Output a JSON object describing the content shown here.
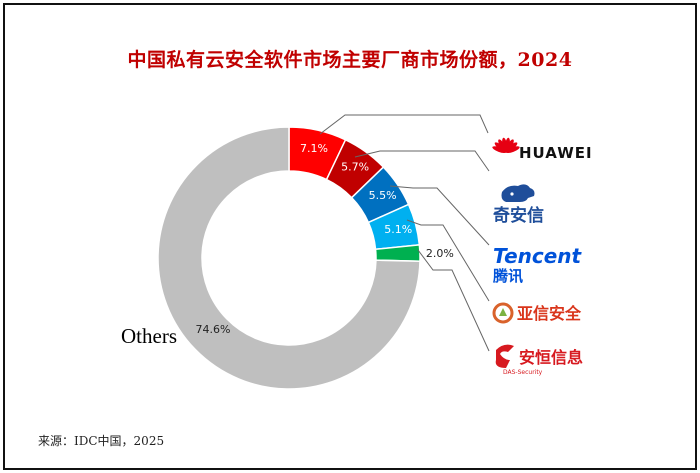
{
  "title": "中国私有云安全软件市场主要厂商市场份额，2024",
  "source": "来源：IDC中国，2025",
  "chart_data": {
    "type": "pie",
    "title": "中国私有云安全软件市场主要厂商市场份额，2024",
    "style": "donut",
    "slices": [
      {
        "name": "HUAWEI",
        "value": 7.1,
        "label": "7.1%",
        "color": "#ff0000",
        "label_pos": "inside",
        "logo_text": "HUAWEI"
      },
      {
        "name": "奇安信",
        "value": 5.7,
        "label": "5.7%",
        "color": "#c00000",
        "label_pos": "inside",
        "logo_text": "奇安信"
      },
      {
        "name": "Tencent 腾讯",
        "value": 5.5,
        "label": "5.5%",
        "color": "#0070c0",
        "label_pos": "inside",
        "logo_text": "Tencent 腾讯"
      },
      {
        "name": "亚信安全",
        "value": 5.1,
        "label": "5.1%",
        "color": "#00b0f0",
        "label_pos": "inside",
        "logo_text": "亚信安全"
      },
      {
        "name": "安恒信息",
        "value": 2.0,
        "label": "2.0%",
        "color": "#00b050",
        "label_pos": "outside",
        "logo_text": "安恒信息 DAS-Security"
      },
      {
        "name": "Others",
        "value": 74.6,
        "label": "74.6%",
        "color": "#bfbfbf",
        "label_pos": "inside"
      }
    ],
    "others_label": "Others"
  }
}
